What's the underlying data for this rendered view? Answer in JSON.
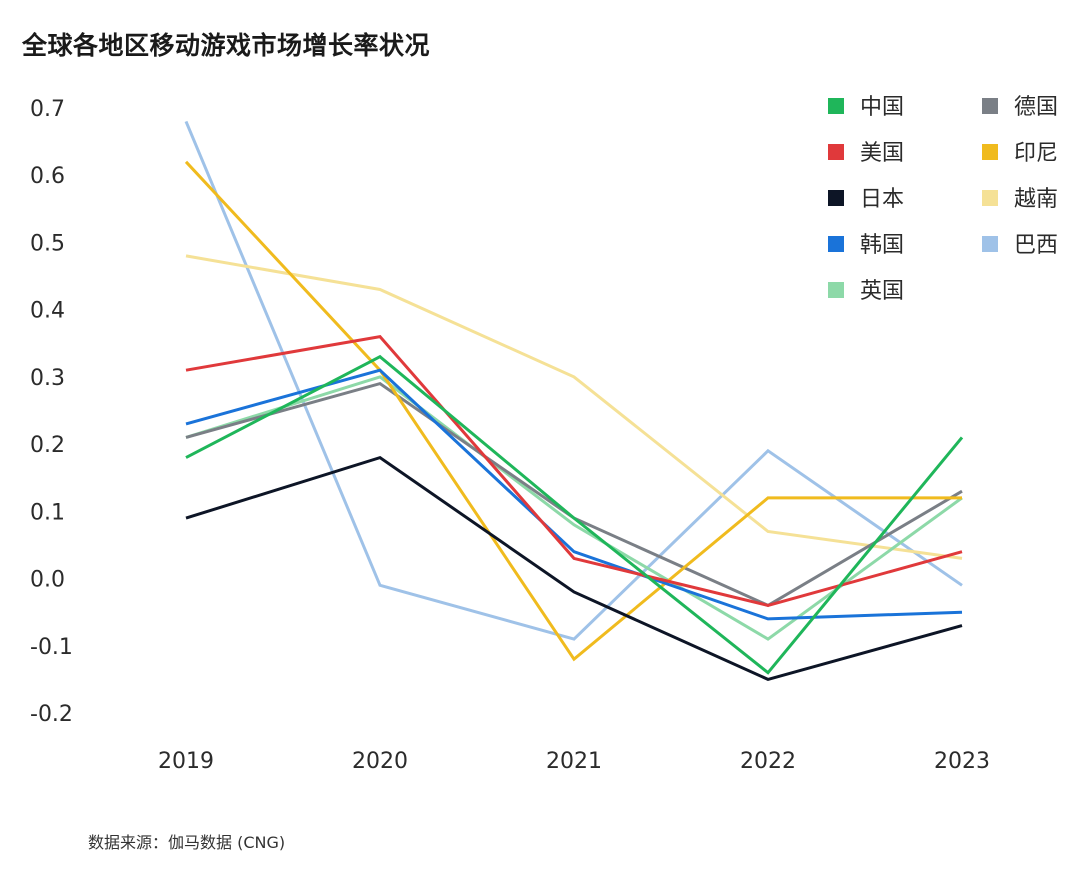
{
  "title": "全球各地区移动游戏市场增长率状况",
  "source": "数据来源：伽马数据 (CNG)",
  "chart_data": {
    "type": "line",
    "title": "全球各地区移动游戏市场增长率状况",
    "xlabel": "",
    "ylabel": "",
    "categories": [
      "2019",
      "2020",
      "2021",
      "2022",
      "2023"
    ],
    "ylim": [
      -0.2,
      0.7
    ],
    "yticks": [
      "0.7",
      "0.6",
      "0.5",
      "0.4",
      "0.3",
      "0.2",
      "0.1",
      "0.0",
      "-0.1",
      "-0.2"
    ],
    "grid": false,
    "legend_position": "top-right",
    "series": [
      {
        "name": "中国",
        "color": "#1fb65a",
        "values": [
          0.18,
          0.33,
          0.09,
          -0.14,
          0.21
        ]
      },
      {
        "name": "美国",
        "color": "#e0393b",
        "values": [
          0.31,
          0.36,
          0.03,
          -0.04,
          0.04
        ]
      },
      {
        "name": "日本",
        "color": "#0d1526",
        "values": [
          0.09,
          0.18,
          -0.02,
          -0.15,
          -0.07
        ]
      },
      {
        "name": "韩国",
        "color": "#1a73d9",
        "values": [
          0.23,
          0.31,
          0.04,
          -0.06,
          -0.05
        ]
      },
      {
        "name": "英国",
        "color": "#8dd9a8",
        "values": [
          0.21,
          0.3,
          0.08,
          -0.09,
          0.12
        ]
      },
      {
        "name": "德国",
        "color": "#7a7f86",
        "values": [
          0.21,
          0.29,
          0.09,
          -0.04,
          0.13
        ]
      },
      {
        "name": "印尼",
        "color": "#f0bb1e",
        "values": [
          0.62,
          0.31,
          -0.12,
          0.12,
          0.12
        ]
      },
      {
        "name": "越南",
        "color": "#f5e196",
        "values": [
          0.48,
          0.43,
          0.3,
          0.07,
          0.03
        ]
      },
      {
        "name": "巴西",
        "color": "#9fc2e8",
        "values": [
          0.68,
          -0.01,
          -0.09,
          0.19,
          -0.01
        ]
      }
    ],
    "legend_order": [
      "中国",
      "德国",
      "美国",
      "印尼",
      "日本",
      "越南",
      "韩国",
      "巴西",
      "英国"
    ]
  }
}
